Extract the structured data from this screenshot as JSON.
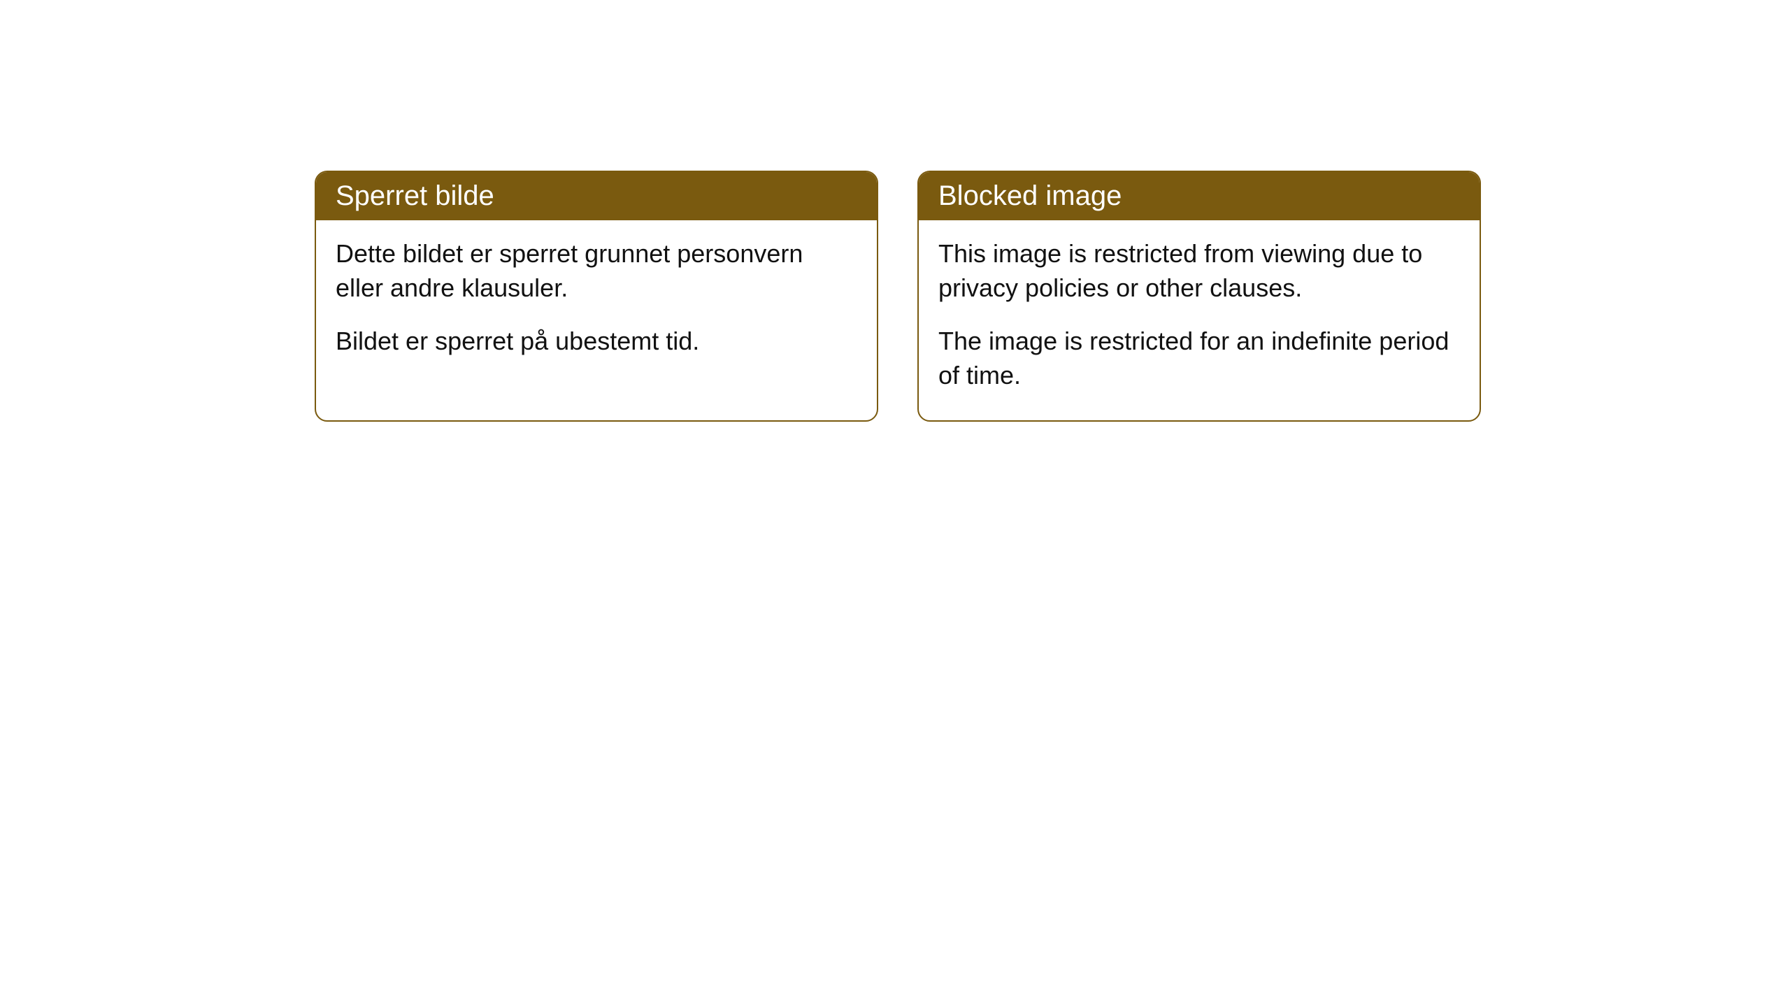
{
  "cards": [
    {
      "title": "Sperret bilde",
      "paragraph1": "Dette bildet er sperret grunnet personvern eller andre klausuler.",
      "paragraph2": "Bildet er sperret på ubestemt tid."
    },
    {
      "title": "Blocked image",
      "paragraph1": "This image is restricted from viewing due to privacy policies or other clauses.",
      "paragraph2": "The image is restricted for an indefinite period of time."
    }
  ],
  "colors": {
    "header_bg": "#7a5a0f",
    "header_text": "#ffffff",
    "border": "#7a5a0f",
    "body_text": "#111111",
    "page_bg": "#ffffff"
  }
}
